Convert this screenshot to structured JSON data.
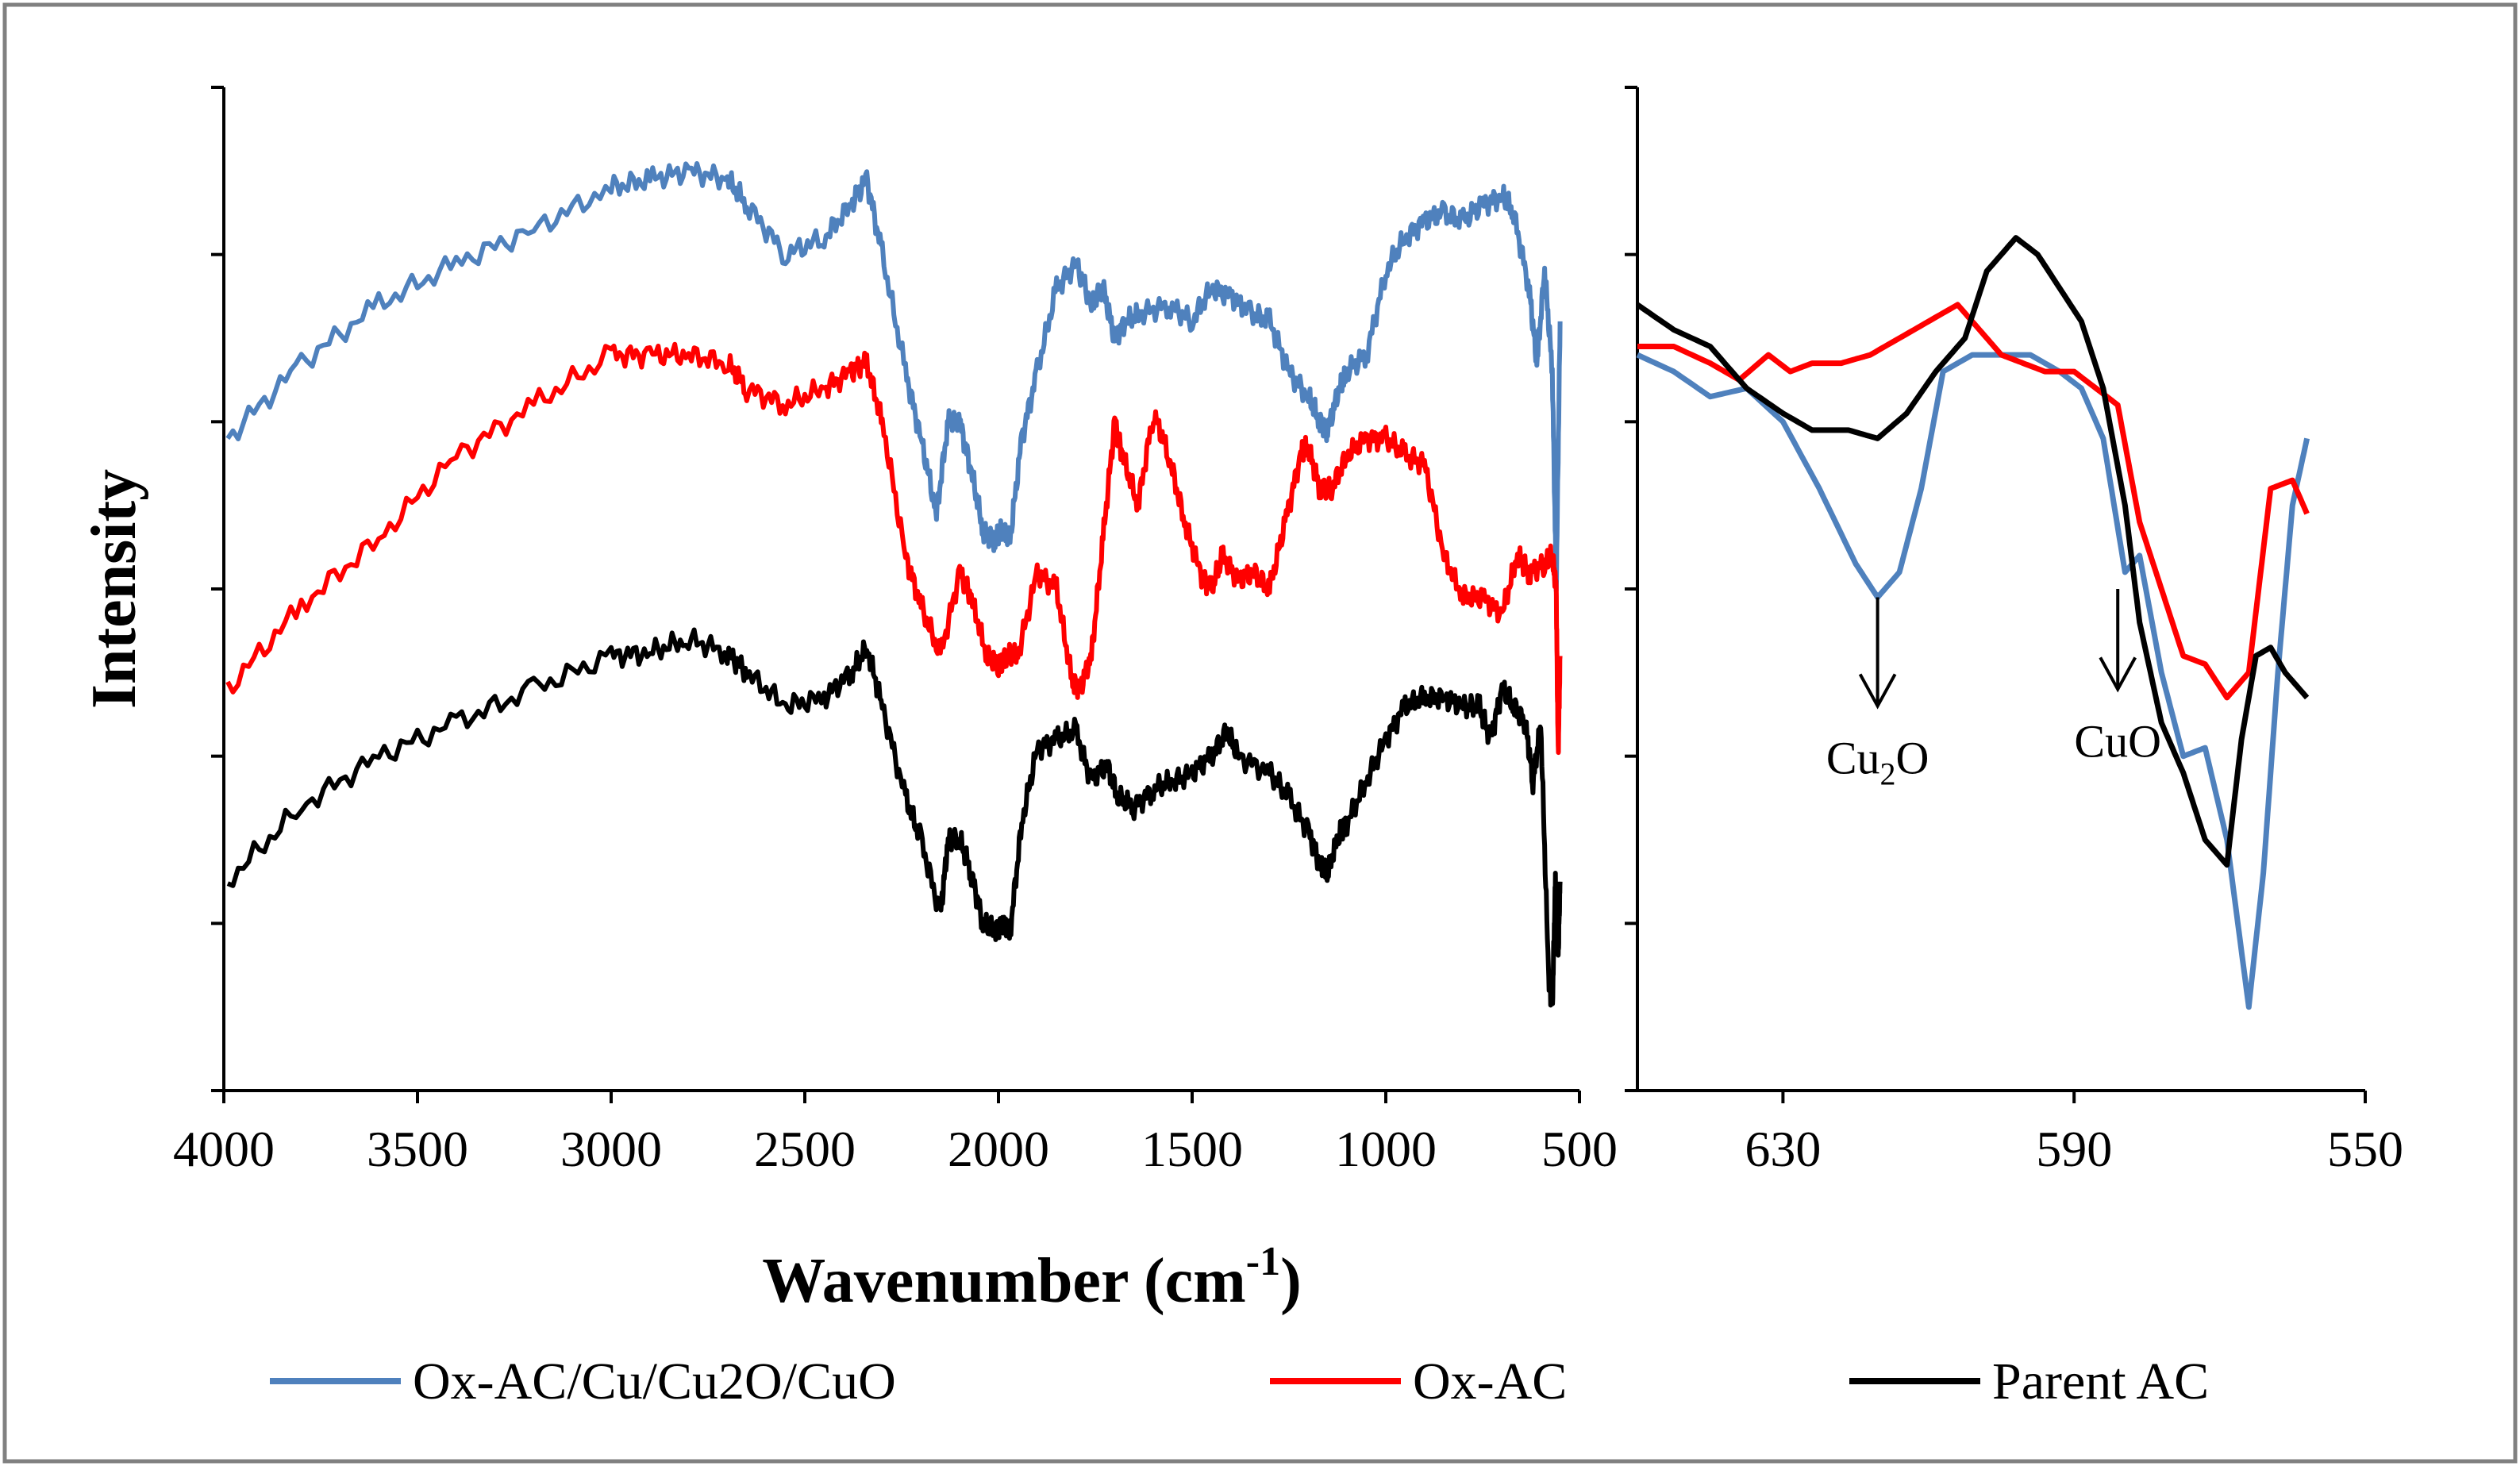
{
  "chart_data": [
    {
      "panel": "left",
      "type": "line",
      "xlabel": "Wavenumber (cm",
      "xlabel_sup": "-1",
      "xlabel_close": ")",
      "ylabel": "Intensity",
      "xlim": [
        4000,
        500
      ],
      "ylim": [
        0,
        6
      ],
      "xticks": [
        "4000",
        "3500",
        "3000",
        "2500",
        "2000",
        "1500",
        "1000",
        "500"
      ],
      "grid": false,
      "legend": "bottom",
      "series": [
        {
          "name": "Ox-AC/Cu/Cu2O/CuO",
          "color": "#4f81bd",
          "x": [
            3990,
            3800,
            3600,
            3400,
            3200,
            3000,
            2900,
            2800,
            2700,
            2650,
            2550,
            2450,
            2380,
            2340,
            2300,
            2240,
            2200,
            2160,
            2130,
            2100,
            2070,
            2040,
            2010,
            1990,
            1970,
            1940,
            1900,
            1850,
            1800,
            1760,
            1730,
            1700,
            1670,
            1630,
            1560,
            1500,
            1450,
            1400,
            1350,
            1300,
            1250,
            1200,
            1170,
            1150,
            1120,
            1100,
            1050,
            1000,
            950,
            900,
            850,
            800,
            750,
            700,
            670,
            630,
            610,
            590,
            570,
            560,
            550
          ],
          "y": [
            3.9,
            4.35,
            4.7,
            4.95,
            5.15,
            5.4,
            5.45,
            5.5,
            5.45,
            5.3,
            5.0,
            5.1,
            5.3,
            5.45,
            5.0,
            4.3,
            3.9,
            3.45,
            4.0,
            4.0,
            3.7,
            3.35,
            3.3,
            3.35,
            3.3,
            3.9,
            4.3,
            4.8,
            4.95,
            4.7,
            4.8,
            4.5,
            4.6,
            4.65,
            4.7,
            4.6,
            4.8,
            4.75,
            4.65,
            4.6,
            4.3,
            4.15,
            4.0,
            3.95,
            4.2,
            4.3,
            4.4,
            4.9,
            5.1,
            5.2,
            5.25,
            5.2,
            5.3,
            5.35,
            5.25,
            4.8,
            4.35,
            4.9,
            4.3,
            3.0,
            4.6
          ]
        },
        {
          "name": "Ox-AC",
          "color": "#ff0000",
          "x": [
            3990,
            3800,
            3600,
            3400,
            3200,
            3000,
            2900,
            2800,
            2700,
            2650,
            2550,
            2450,
            2380,
            2340,
            2300,
            2240,
            2200,
            2150,
            2100,
            2070,
            2030,
            2000,
            1980,
            1950,
            1900,
            1850,
            1810,
            1790,
            1760,
            1730,
            1700,
            1680,
            1640,
            1600,
            1560,
            1520,
            1480,
            1450,
            1420,
            1380,
            1340,
            1300,
            1260,
            1220,
            1200,
            1170,
            1140,
            1100,
            1050,
            1000,
            950,
            900,
            850,
            800,
            750,
            700,
            660,
            630,
            590,
            570,
            560,
            555,
            550
          ],
          "y": [
            2.4,
            2.9,
            3.3,
            3.8,
            4.1,
            4.4,
            4.4,
            4.4,
            4.35,
            4.2,
            4.1,
            4.2,
            4.3,
            4.35,
            4.0,
            3.2,
            2.9,
            2.6,
            3.1,
            2.95,
            2.6,
            2.55,
            2.6,
            2.6,
            3.1,
            3.0,
            2.45,
            2.4,
            2.6,
            3.3,
            4.0,
            3.8,
            3.5,
            4.05,
            3.8,
            3.4,
            3.1,
            3.0,
            3.2,
            3.05,
            3.1,
            3.0,
            3.4,
            3.8,
            3.85,
            3.6,
            3.6,
            3.8,
            3.9,
            3.9,
            3.8,
            3.75,
            3.2,
            2.95,
            2.95,
            2.85,
            3.2,
            3.1,
            3.15,
            3.2,
            3.0,
            2.0,
            2.6
          ]
        },
        {
          "name": "Parent AC",
          "color": "#000000",
          "x": [
            3990,
            3800,
            3600,
            3400,
            3200,
            3000,
            2900,
            2800,
            2700,
            2650,
            2550,
            2450,
            2380,
            2340,
            2300,
            2240,
            2200,
            2150,
            2130,
            2100,
            2070,
            2040,
            2010,
            1990,
            1970,
            1940,
            1900,
            1850,
            1800,
            1760,
            1720,
            1690,
            1650,
            1600,
            1550,
            1500,
            1450,
            1410,
            1380,
            1300,
            1250,
            1200,
            1170,
            1150,
            1120,
            1100,
            1050,
            1000,
            950,
            900,
            850,
            800,
            760,
            730,
            700,
            670,
            640,
            620,
            600,
            580,
            570,
            562,
            555,
            550
          ],
          "y": [
            1.25,
            1.7,
            2.0,
            2.2,
            2.4,
            2.6,
            2.62,
            2.7,
            2.62,
            2.5,
            2.3,
            2.35,
            2.5,
            2.65,
            2.3,
            1.75,
            1.5,
            1.05,
            1.5,
            1.5,
            1.3,
            1.0,
            0.95,
            1.0,
            0.95,
            1.6,
            2.05,
            2.1,
            2.15,
            1.85,
            1.95,
            1.75,
            1.7,
            1.8,
            1.85,
            1.9,
            2.0,
            2.15,
            2.0,
            1.9,
            1.75,
            1.55,
            1.35,
            1.3,
            1.55,
            1.6,
            1.85,
            2.1,
            2.3,
            2.35,
            2.35,
            2.3,
            2.3,
            2.1,
            2.4,
            2.3,
            2.2,
            1.85,
            2.2,
            0.7,
            0.5,
            1.25,
            0.8,
            1.25
          ]
        }
      ]
    },
    {
      "panel": "right",
      "type": "line",
      "xlim": [
        650,
        550
      ],
      "ylim": [
        0,
        6
      ],
      "xticks": [
        "630",
        "590",
        "550"
      ],
      "grid": false,
      "annotations": [
        {
          "text_main": "Cu",
          "text_sub": "2",
          "text_tail": "O",
          "x": 617,
          "arrow_from_y": 2.95,
          "arrow_to_y": 2.3
        },
        {
          "text_main": "CuO",
          "text_sub": "",
          "text_tail": "",
          "x": 584,
          "arrow_from_y": 3.0,
          "arrow_to_y": 2.4
        }
      ],
      "series": [
        {
          "name": "Ox-AC/Cu/Cu2O/CuO",
          "color": "#4f81bd",
          "x": [
            650,
            645,
            640,
            635,
            630,
            625,
            620,
            617,
            614,
            611,
            608,
            604,
            600,
            596,
            592,
            589,
            586,
            583,
            581,
            578,
            575,
            572,
            569,
            566,
            564,
            562,
            560,
            558
          ],
          "y": [
            4.4,
            4.3,
            4.15,
            4.2,
            4.0,
            3.6,
            3.15,
            2.95,
            3.1,
            3.6,
            4.3,
            4.4,
            4.4,
            4.4,
            4.3,
            4.2,
            3.9,
            3.1,
            3.2,
            2.5,
            2.0,
            2.05,
            1.5,
            0.5,
            1.3,
            2.5,
            3.5,
            3.9
          ]
        },
        {
          "name": "Ox-AC",
          "color": "#ff0000",
          "x": [
            650,
            645,
            640,
            636,
            632,
            629,
            626,
            622,
            618,
            614,
            610,
            606,
            603,
            600,
            597,
            594,
            590,
            587,
            584,
            581,
            578,
            575,
            572,
            569,
            566,
            563,
            560,
            558
          ],
          "y": [
            4.45,
            4.45,
            4.35,
            4.25,
            4.4,
            4.3,
            4.35,
            4.35,
            4.4,
            4.5,
            4.6,
            4.7,
            4.55,
            4.4,
            4.35,
            4.3,
            4.3,
            4.2,
            4.1,
            3.4,
            3.0,
            2.6,
            2.55,
            2.35,
            2.5,
            3.6,
            3.65,
            3.45
          ]
        },
        {
          "name": "Parent AC",
          "color": "#000000",
          "x": [
            650,
            645,
            640,
            635,
            630,
            626,
            621,
            617,
            613,
            609,
            605,
            602,
            598,
            595,
            592,
            589,
            586,
            583,
            581,
            578,
            575,
            572,
            569,
            567,
            565,
            563,
            561,
            558
          ],
          "y": [
            4.7,
            4.55,
            4.45,
            4.2,
            4.05,
            3.95,
            3.95,
            3.9,
            4.05,
            4.3,
            4.5,
            4.9,
            5.1,
            5.0,
            4.8,
            4.6,
            4.2,
            3.5,
            2.8,
            2.2,
            1.9,
            1.5,
            1.35,
            2.1,
            2.6,
            2.65,
            2.5,
            2.35
          ]
        }
      ]
    }
  ]
}
